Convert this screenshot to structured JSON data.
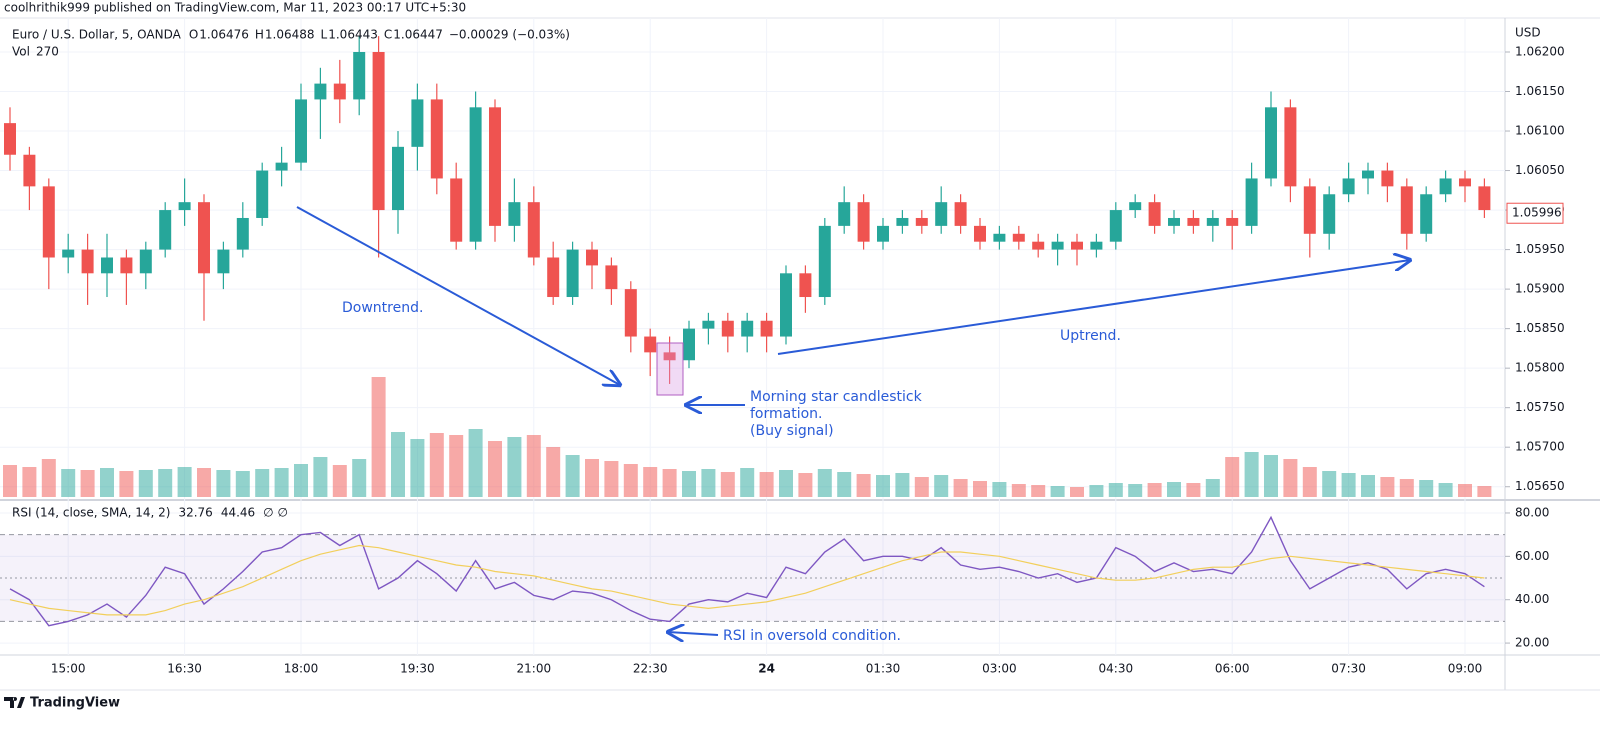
{
  "chart_data": {
    "type": "candlestick",
    "attribution": "coolhrithik999 published on TradingView.com, Mar 11, 2023 00:17 UTC+5:30",
    "symbol": "Euro / U.S. Dollar, 5, OANDA",
    "ohlc_legend": [
      {
        "key": "O",
        "value": "1.06476"
      },
      {
        "key": "H",
        "value": "1.06488"
      },
      {
        "key": "L",
        "value": "1.06443"
      },
      {
        "key": "C",
        "value": "1.06447"
      }
    ],
    "change": "−0.00029 (−0.03%)",
    "volume_label": "Vol",
    "volume_value": 270,
    "currency": "USD",
    "footer": "TradingView",
    "up_color": "#26a69a",
    "down_color": "#ef5350",
    "grid": true,
    "x": [
      "14:15",
      "14:30",
      "14:45",
      "15:00",
      "15:15",
      "15:30",
      "15:45",
      "16:00",
      "16:15",
      "16:30",
      "16:45",
      "17:00",
      "17:15",
      "17:30",
      "17:45",
      "18:00",
      "18:15",
      "18:30",
      "18:45",
      "19:00",
      "19:15",
      "19:30",
      "19:45",
      "20:00",
      "20:15",
      "20:30",
      "20:45",
      "21:00",
      "21:15",
      "21:30",
      "21:45",
      "22:00",
      "22:15",
      "22:30",
      "22:45",
      "23:00",
      "23:15",
      "23:30",
      "23:45",
      "00:00",
      "00:15",
      "00:30",
      "00:45",
      "01:00",
      "01:15",
      "01:30",
      "01:45",
      "02:00",
      "02:15",
      "02:30",
      "02:45",
      "03:00",
      "03:15",
      "03:30",
      "03:45",
      "04:00",
      "04:15",
      "04:30",
      "04:45",
      "05:00",
      "05:15",
      "05:30",
      "05:45",
      "06:00",
      "06:15",
      "06:30",
      "06:45",
      "07:00",
      "07:15",
      "07:30",
      "07:45",
      "08:00",
      "08:15",
      "08:30",
      "08:45",
      "09:00",
      "09:15"
    ],
    "open": [
      1.0611,
      1.0607,
      1.0603,
      1.0594,
      1.0595,
      1.0592,
      1.0594,
      1.0592,
      1.0595,
      1.06,
      1.0601,
      1.0592,
      1.0595,
      1.0599,
      1.0605,
      1.0606,
      1.0614,
      1.0616,
      1.0614,
      1.062,
      1.06,
      1.0608,
      1.0614,
      1.0604,
      1.0596,
      1.0613,
      1.0598,
      1.0601,
      1.0594,
      1.0589,
      1.0595,
      1.0593,
      1.059,
      1.0584,
      1.0582,
      1.0581,
      1.0585,
      1.0586,
      1.0584,
      1.0586,
      1.0584,
      1.0592,
      1.0589,
      1.0598,
      1.0601,
      1.0596,
      1.0598,
      1.0599,
      1.0598,
      1.0601,
      1.0598,
      1.0596,
      1.0597,
      1.0596,
      1.0595,
      1.0596,
      1.0595,
      1.0596,
      1.06,
      1.0601,
      1.0598,
      1.0599,
      1.0598,
      1.0599,
      1.0598,
      1.0604,
      1.0613,
      1.0603,
      1.0597,
      1.0602,
      1.0604,
      1.0605,
      1.0603,
      1.0597,
      1.0602,
      1.0604,
      1.0603
    ],
    "high": [
      1.0613,
      1.0608,
      1.0604,
      1.0597,
      1.0597,
      1.0597,
      1.0595,
      1.0596,
      1.0601,
      1.0604,
      1.0602,
      1.0596,
      1.0601,
      1.0606,
      1.0608,
      1.0616,
      1.0618,
      1.0619,
      1.0622,
      1.0622,
      1.061,
      1.0616,
      1.0616,
      1.0606,
      1.0615,
      1.0614,
      1.0604,
      1.0603,
      1.0596,
      1.0596,
      1.0596,
      1.0594,
      1.0591,
      1.0585,
      1.0584,
      1.0586,
      1.0587,
      1.0587,
      1.0587,
      1.0587,
      1.0593,
      1.0593,
      1.0599,
      1.0603,
      1.0602,
      1.0599,
      1.06,
      1.06,
      1.0603,
      1.0602,
      1.0599,
      1.0598,
      1.0598,
      1.0597,
      1.0597,
      1.0597,
      1.0597,
      1.0601,
      1.0602,
      1.0602,
      1.06,
      1.06,
      1.06,
      1.06,
      1.0606,
      1.0615,
      1.0614,
      1.0604,
      1.0603,
      1.0606,
      1.0606,
      1.0606,
      1.0604,
      1.0603,
      1.0605,
      1.0605,
      1.0604
    ],
    "low": [
      1.0605,
      1.06,
      1.059,
      1.0592,
      1.0588,
      1.0589,
      1.0588,
      1.059,
      1.0594,
      1.0598,
      1.0586,
      1.059,
      1.0594,
      1.0598,
      1.0603,
      1.0605,
      1.0609,
      1.0611,
      1.0612,
      1.0594,
      1.0597,
      1.0605,
      1.0602,
      1.0595,
      1.0595,
      1.0596,
      1.0596,
      1.0593,
      1.0588,
      1.0588,
      1.059,
      1.0588,
      1.0582,
      1.0579,
      1.0578,
      1.058,
      1.0583,
      1.0582,
      1.0582,
      1.0582,
      1.0583,
      1.0587,
      1.0588,
      1.0597,
      1.0595,
      1.0595,
      1.0597,
      1.0597,
      1.0597,
      1.0597,
      1.0595,
      1.0595,
      1.0595,
      1.0594,
      1.0593,
      1.0593,
      1.0594,
      1.0595,
      1.0599,
      1.0597,
      1.0597,
      1.0597,
      1.0596,
      1.0595,
      1.0597,
      1.0603,
      1.0601,
      1.0594,
      1.0595,
      1.0601,
      1.0602,
      1.0601,
      1.0595,
      1.0596,
      1.0601,
      1.0601,
      1.0599
    ],
    "close": [
      1.0607,
      1.0603,
      1.0594,
      1.0595,
      1.0592,
      1.0594,
      1.0592,
      1.0595,
      1.06,
      1.0601,
      1.0592,
      1.0595,
      1.0599,
      1.0605,
      1.0606,
      1.0614,
      1.0616,
      1.0614,
      1.062,
      1.06,
      1.0608,
      1.0614,
      1.0604,
      1.0596,
      1.0613,
      1.0598,
      1.0601,
      1.0594,
      1.0589,
      1.0595,
      1.0593,
      1.059,
      1.0584,
      1.0582,
      1.0581,
      1.0585,
      1.0586,
      1.0584,
      1.0586,
      1.0584,
      1.0592,
      1.0589,
      1.0598,
      1.0601,
      1.0596,
      1.0598,
      1.0599,
      1.0598,
      1.0601,
      1.0598,
      1.0596,
      1.0597,
      1.0596,
      1.0595,
      1.0596,
      1.0595,
      1.0596,
      1.06,
      1.0601,
      1.0598,
      1.0599,
      1.0598,
      1.0599,
      1.0598,
      1.0604,
      1.0613,
      1.0603,
      1.0597,
      1.0602,
      1.0604,
      1.0605,
      1.0603,
      1.0597,
      1.0602,
      1.0604,
      1.0603,
      1.06
    ],
    "volume": [
      320,
      300,
      380,
      280,
      270,
      290,
      260,
      270,
      280,
      300,
      290,
      270,
      260,
      280,
      290,
      330,
      400,
      320,
      380,
      1200,
      650,
      580,
      640,
      620,
      680,
      560,
      600,
      620,
      500,
      420,
      380,
      360,
      330,
      300,
      280,
      260,
      280,
      250,
      290,
      250,
      270,
      240,
      280,
      250,
      230,
      220,
      240,
      200,
      220,
      180,
      160,
      150,
      130,
      120,
      110,
      100,
      120,
      140,
      130,
      140,
      150,
      140,
      180,
      400,
      450,
      420,
      380,
      300,
      260,
      240,
      220,
      200,
      180,
      170,
      140,
      130,
      110
    ],
    "ylim": [
      1.05637,
      1.06243
    ],
    "yticks": [
      {
        "value": 1.062,
        "label": "1.06200"
      },
      {
        "value": 1.0615,
        "label": "1.06150"
      },
      {
        "value": 1.061,
        "label": "1.06100"
      },
      {
        "value": 1.0605,
        "label": "1.06050"
      },
      {
        "value": 1.06,
        "label": "1.06000"
      },
      {
        "value": 1.0595,
        "label": "1.05950"
      },
      {
        "value": 1.059,
        "label": "1.05900"
      },
      {
        "value": 1.0585,
        "label": "1.05850"
      },
      {
        "value": 1.058,
        "label": "1.05800"
      },
      {
        "value": 1.0575,
        "label": "1.05750"
      },
      {
        "value": 1.057,
        "label": "1.05700"
      },
      {
        "value": 1.0565,
        "label": "1.05650"
      }
    ],
    "xticks": [
      "15:00",
      "16:30",
      "18:00",
      "19:30",
      "21:00",
      "22:30",
      {
        "value": "00:00",
        "label": "24"
      },
      "01:30",
      "03:00",
      "04:30",
      "06:00",
      "07:30",
      "09:00"
    ],
    "last_price": 1.05996,
    "annotations": {
      "downtrend": "Downtrend.",
      "uptrend": "Uptrend.",
      "morning_star": [
        "Morning star candlestick",
        "formation.",
        "(Buy signal)"
      ],
      "rsi_note": "RSI in oversold condition."
    },
    "rsi": {
      "type": "line",
      "legend": "RSI (14, close, SMA, 14, 2)",
      "value_labels": [
        "32.76",
        "44.46"
      ],
      "empty_values": "∅ ∅",
      "series": [
        {
          "color": "#7e57c2",
          "values": [
            45,
            40,
            28,
            30,
            33,
            38,
            32,
            42,
            55,
            52,
            38,
            45,
            53,
            62,
            64,
            70,
            71,
            65,
            70,
            45,
            50,
            58,
            52,
            44,
            58,
            45,
            48,
            42,
            40,
            44,
            43,
            40,
            35,
            31,
            30,
            38,
            40,
            39,
            43,
            41,
            55,
            52,
            62,
            68,
            58,
            60,
            60,
            58,
            64,
            56,
            54,
            55,
            53,
            50,
            52,
            48,
            50,
            64,
            60,
            53,
            57,
            53,
            54,
            52,
            62,
            78,
            58,
            45,
            50,
            55,
            57,
            54,
            45,
            52,
            54,
            52,
            46
          ]
        },
        {
          "color": "#f2cf5b",
          "values": [
            40,
            38,
            36,
            35,
            34,
            33,
            33,
            33,
            35,
            38,
            40,
            43,
            46,
            50,
            54,
            58,
            61,
            63,
            65,
            64,
            62,
            60,
            58,
            56,
            55,
            53,
            52,
            51,
            49,
            47,
            45,
            44,
            42,
            40,
            38,
            37,
            36,
            37,
            38,
            39,
            41,
            43,
            46,
            49,
            52,
            55,
            58,
            60,
            62,
            62,
            61,
            60,
            58,
            56,
            54,
            52,
            50,
            49,
            49,
            50,
            52,
            54,
            55,
            55,
            57,
            59,
            60,
            59,
            58,
            57,
            56,
            55,
            54,
            53,
            52,
            51,
            50
          ]
        }
      ],
      "bands": [
        70,
        50,
        30
      ],
      "band_color": "#7e57c2",
      "ylim": [
        14.5,
        84.6
      ],
      "yticks": [
        {
          "value": 80,
          "label": "80.00"
        },
        {
          "value": 60,
          "label": "60.00"
        },
        {
          "value": 40,
          "label": "40.00"
        },
        {
          "value": 20,
          "label": "20.00"
        }
      ]
    }
  }
}
